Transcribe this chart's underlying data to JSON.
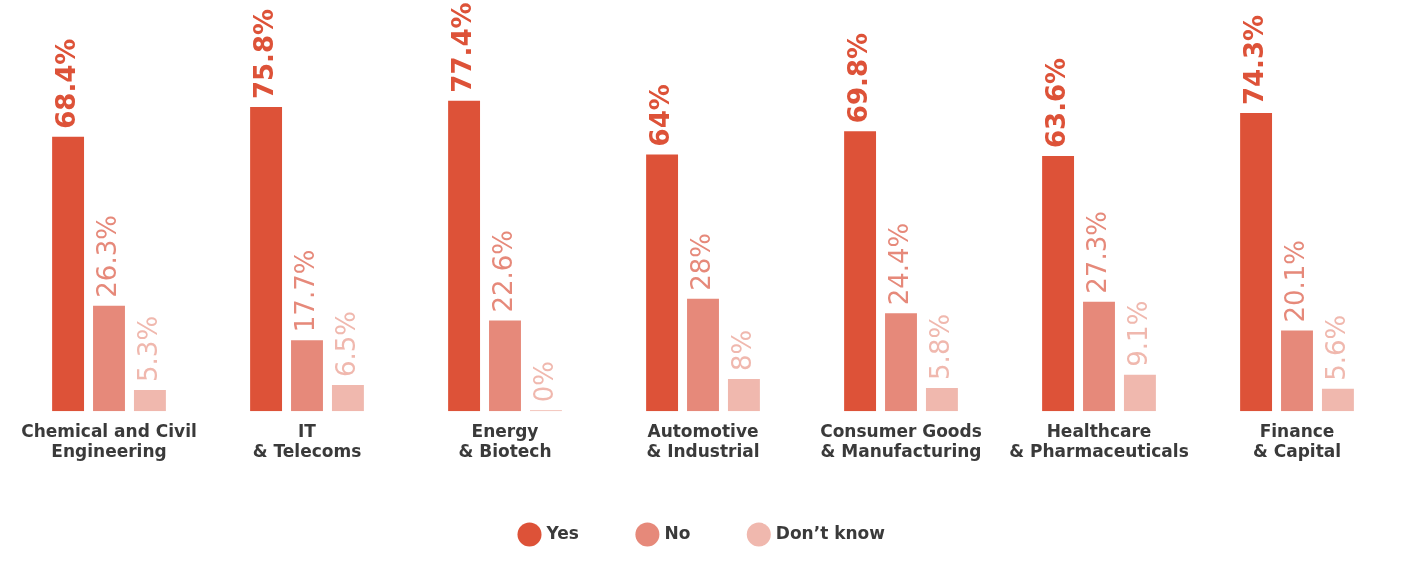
{
  "chart_data": {
    "type": "bar",
    "categories": [
      "Chemical and Civil Engineering",
      "IT & Telecoms",
      "Energy & Biotech",
      "Automotive & Industrial",
      "Consumer Goods & Manufacturing",
      "Healthcare & Pharmaceuticals",
      "Finance & Capital"
    ],
    "series": [
      {
        "name": "Yes",
        "color": "#dd5238",
        "values": [
          68.4,
          75.8,
          77.4,
          64,
          69.8,
          63.6,
          74.3
        ],
        "value_labels": [
          "68.4%",
          "75.8%",
          "77.4%",
          "64%",
          "69.8%",
          "63.6%",
          "74.3%"
        ]
      },
      {
        "name": "No",
        "color": "#e6897a",
        "values": [
          26.3,
          17.7,
          22.6,
          28,
          24.4,
          27.3,
          20.1
        ],
        "value_labels": [
          "26.3%",
          "17.7%",
          "22.6%",
          "28%",
          "24.4%",
          "27.3%",
          "20.1%"
        ]
      },
      {
        "name": "Don’t know",
        "color": "#f0b8ae",
        "values": [
          5.3,
          6.5,
          0,
          8,
          5.8,
          9.1,
          5.6
        ],
        "value_labels": [
          "5.3%",
          "6.5%",
          "0%",
          "8%",
          "5.8%",
          "9.1%",
          "5.6%"
        ]
      }
    ],
    "legend": "bottom"
  }
}
